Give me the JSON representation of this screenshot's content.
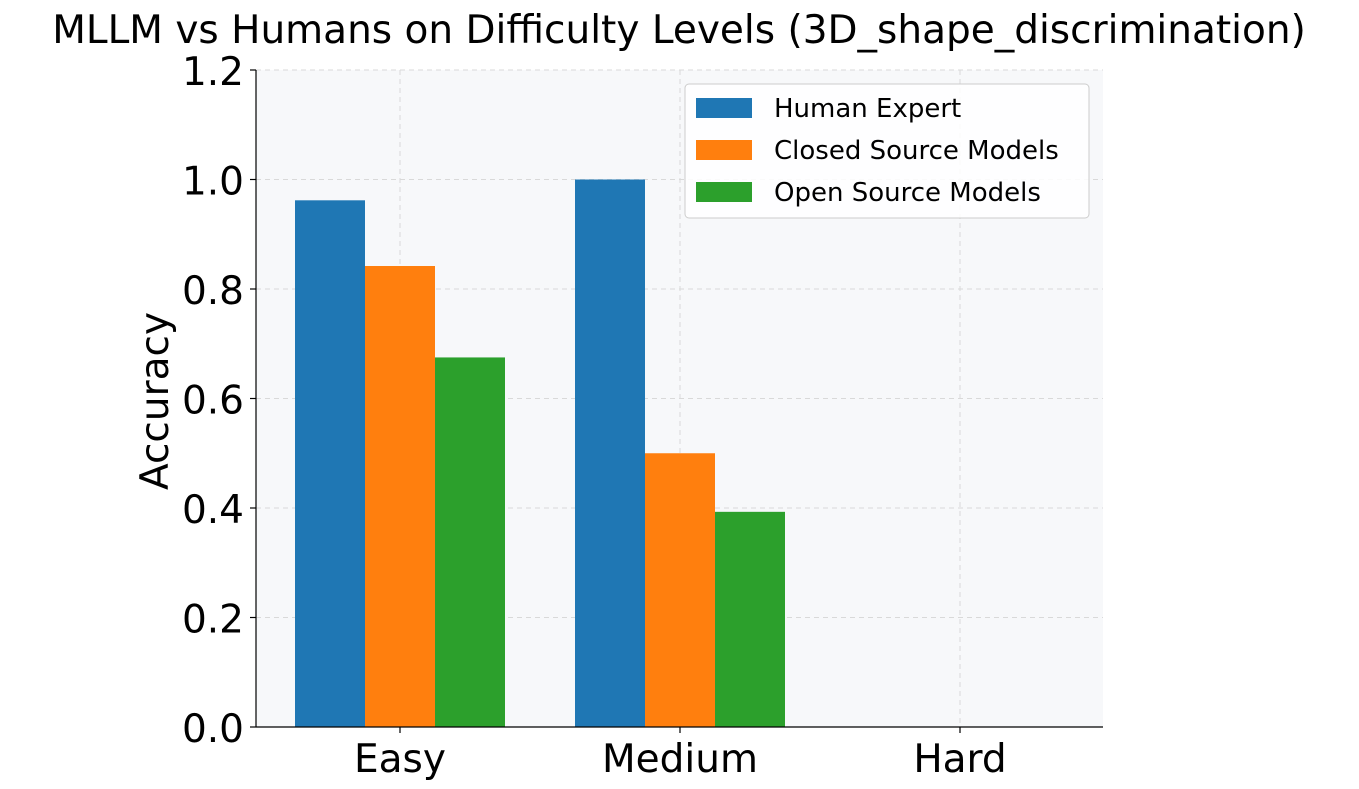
{
  "chart_data": {
    "type": "bar",
    "title": "MLLM vs Humans on Difficulty Levels (3D_shape_discrimination)",
    "xlabel": "",
    "ylabel": "Accuracy",
    "ylim": [
      0,
      1.2
    ],
    "yticks": [
      "0.0",
      "0.2",
      "0.4",
      "0.6",
      "0.8",
      "1.0",
      "1.2"
    ],
    "ytick_values": [
      0,
      0.2,
      0.4,
      0.6,
      0.8,
      1.0,
      1.2
    ],
    "categories": [
      "Easy",
      "Medium",
      "Hard"
    ],
    "series": [
      {
        "name": "Human Expert",
        "color": "#1f77b4",
        "values": [
          0.962,
          1.0,
          0.0
        ]
      },
      {
        "name": "Closed Source Models",
        "color": "#ff7f0e",
        "values": [
          0.842,
          0.5,
          0.0
        ]
      },
      {
        "name": "Open Source Models",
        "color": "#2ca02c",
        "values": [
          0.675,
          0.393,
          0.0
        ]
      }
    ],
    "grid": true,
    "legend_position": "top-right",
    "plot_background": "#f7f8fa",
    "grid_color": "#d9d9d9"
  }
}
